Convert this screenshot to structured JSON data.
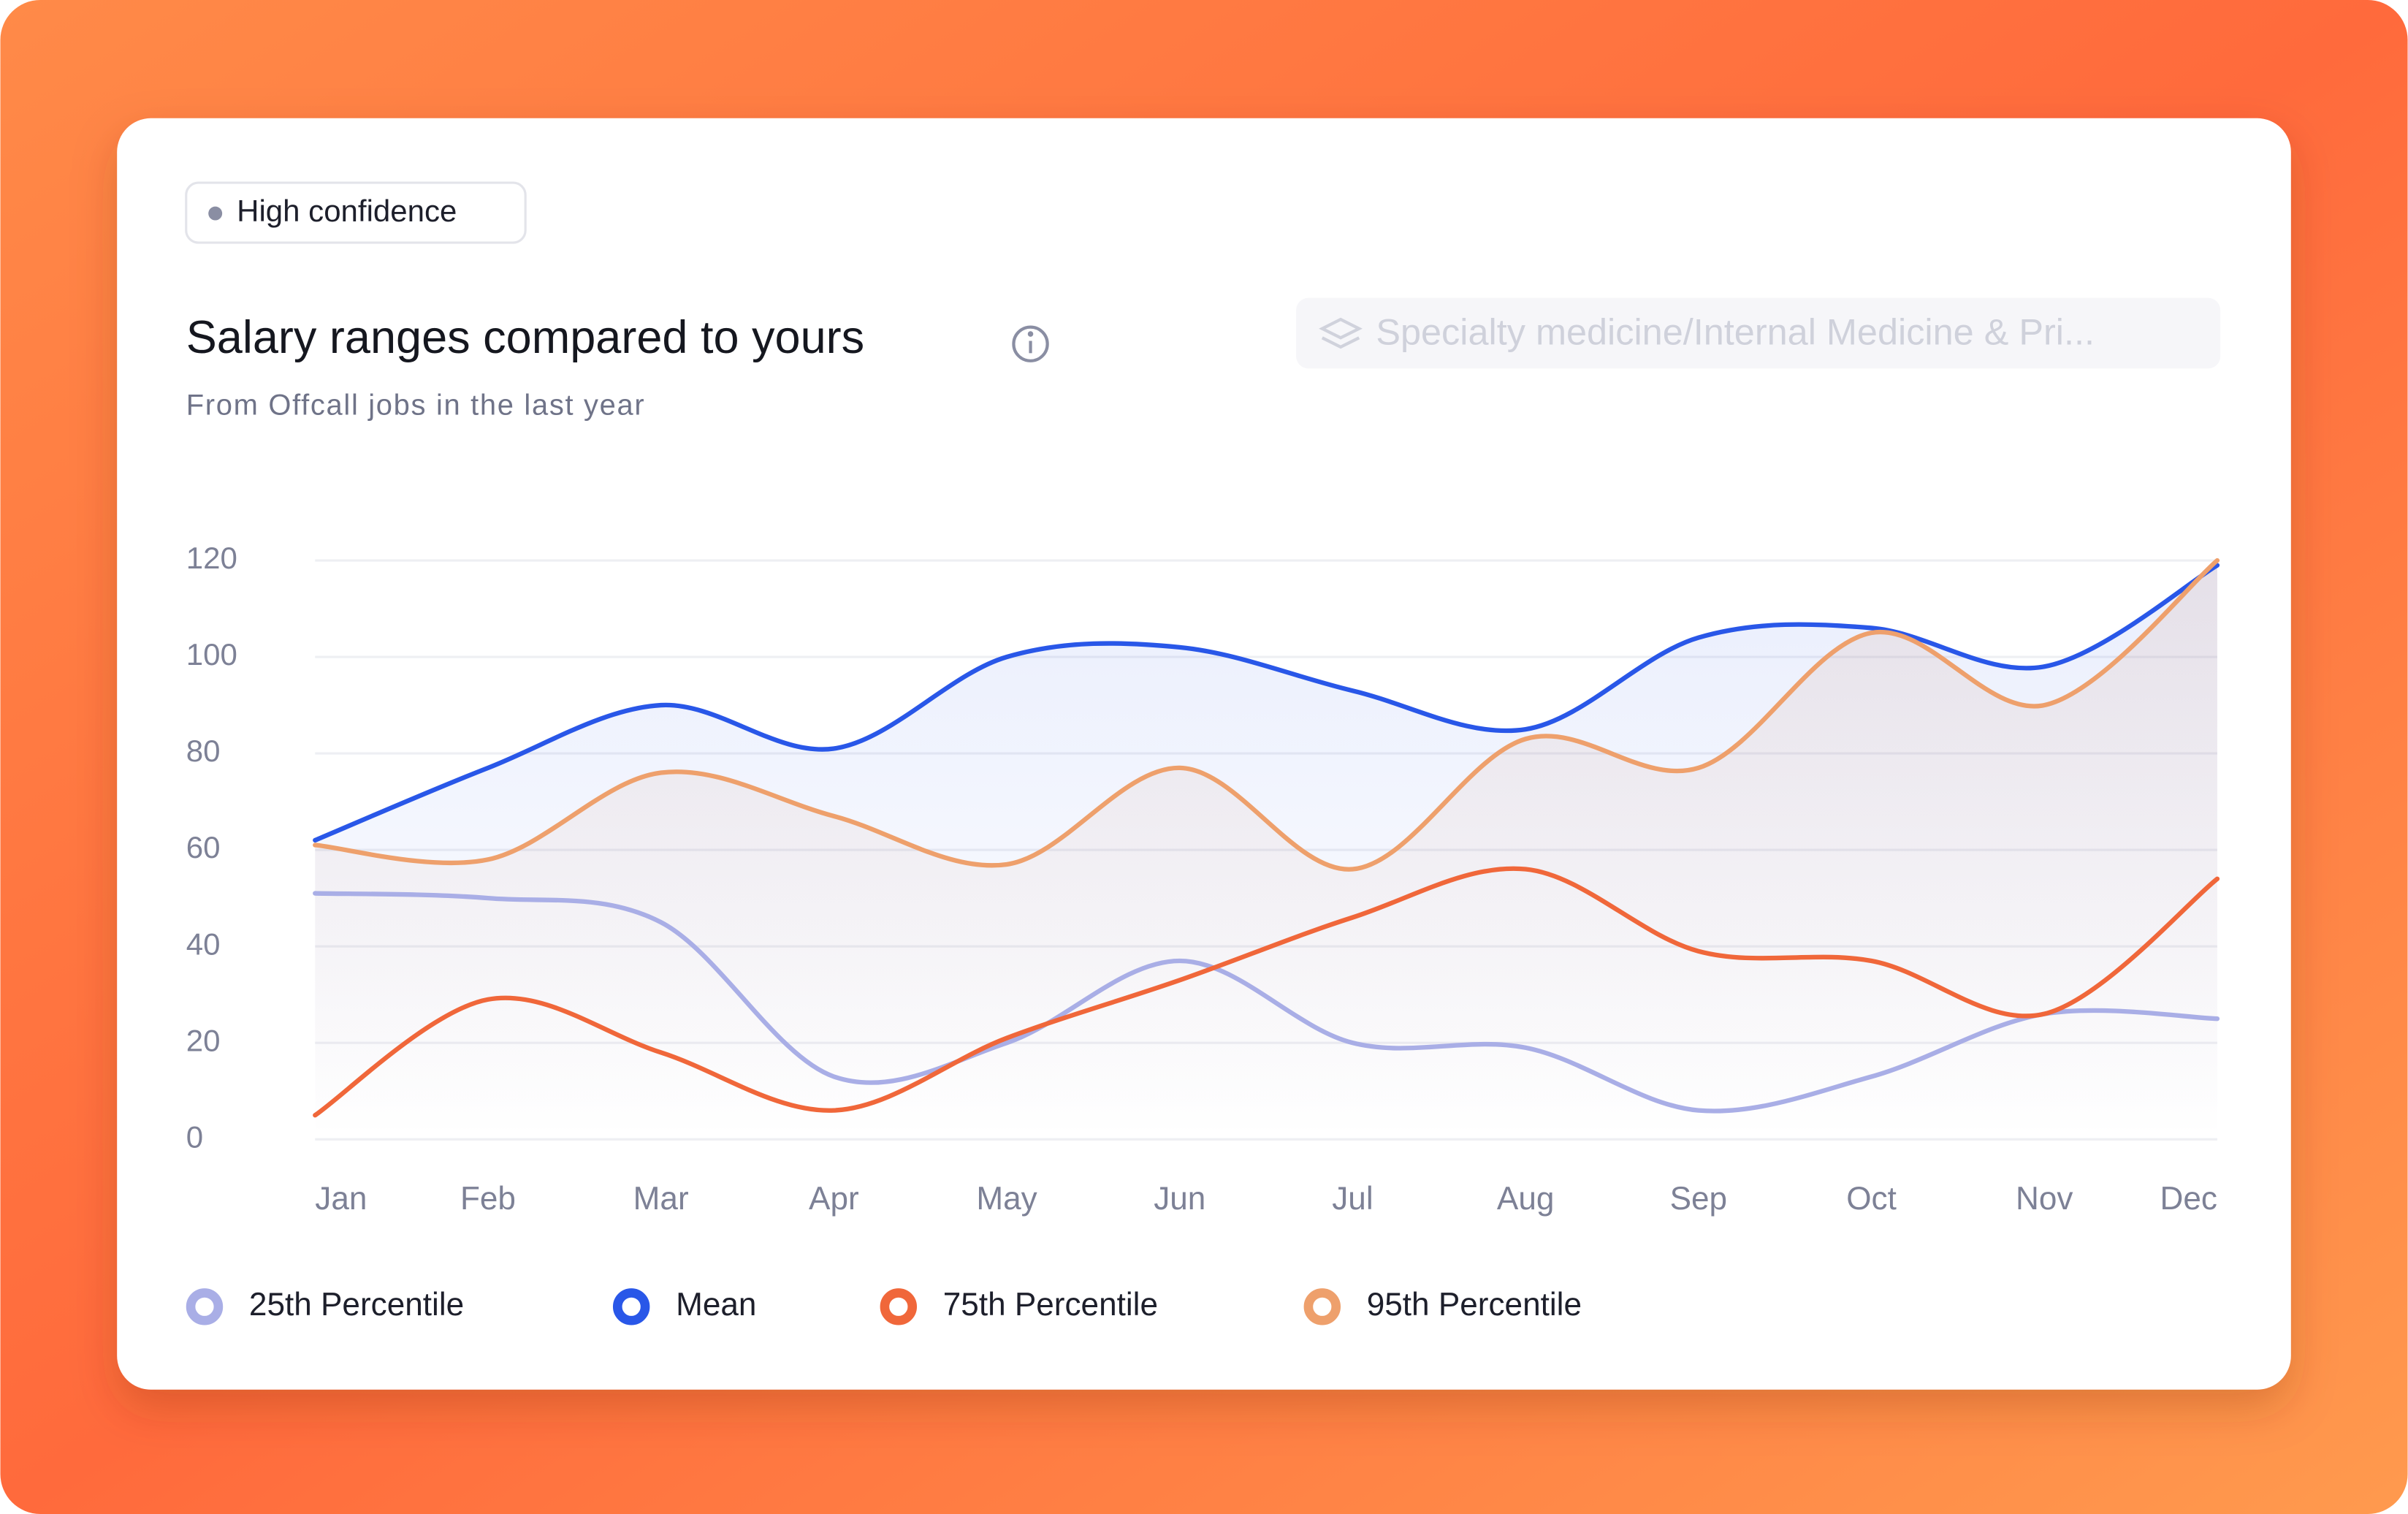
{
  "badge": "High confidence",
  "dropdown": "Specialty medicine/Internal Medicine & Pri...",
  "chart_data": {
    "type": "line",
    "title": "Salary ranges compared to yours",
    "subtitle": "From Offcall jobs in the last year",
    "categories": [
      "Jan",
      "Feb",
      "Mar",
      "Apr",
      "May",
      "Jun",
      "Jul",
      "Aug",
      "Sep",
      "Oct",
      "Nov",
      "Dec"
    ],
    "series": [
      {
        "name": "25th Percentile",
        "color": "#a9aee6",
        "values": [
          51,
          50,
          45,
          13,
          20,
          37,
          20,
          19,
          6,
          13,
          26,
          25
        ]
      },
      {
        "name": "Mean",
        "color": "#2957e8",
        "values": [
          62,
          77,
          90,
          81,
          100,
          102,
          93,
          85,
          104,
          106,
          98,
          119
        ]
      },
      {
        "name": "75th Percentile",
        "color": "#f0673a",
        "values": [
          5,
          29,
          18,
          6,
          21,
          33,
          46,
          56,
          39,
          37,
          26,
          54
        ]
      },
      {
        "name": "95th Percentile",
        "color": "#eea06c",
        "values": [
          61,
          58,
          76,
          67,
          57,
          77,
          56,
          83,
          77,
          105,
          90,
          120
        ]
      }
    ],
    "ylim": [
      0,
      120
    ],
    "yticks": [
      0,
      20,
      40,
      60,
      80,
      100,
      120
    ],
    "grid": true
  }
}
